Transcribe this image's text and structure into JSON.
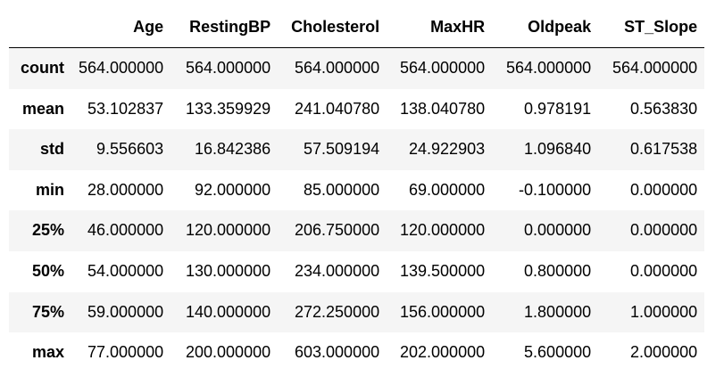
{
  "table": {
    "index_header": "",
    "columns": [
      "Age",
      "RestingBP",
      "Cholesterol",
      "MaxHR",
      "Oldpeak",
      "ST_Slope"
    ],
    "rows": [
      {
        "label": "count",
        "values": [
          "564.000000",
          "564.000000",
          "564.000000",
          "564.000000",
          "564.000000",
          "564.000000"
        ]
      },
      {
        "label": "mean",
        "values": [
          "53.102837",
          "133.359929",
          "241.040780",
          "138.040780",
          "0.978191",
          "0.563830"
        ]
      },
      {
        "label": "std",
        "values": [
          "9.556603",
          "16.842386",
          "57.509194",
          "24.922903",
          "1.096840",
          "0.617538"
        ]
      },
      {
        "label": "min",
        "values": [
          "28.000000",
          "92.000000",
          "85.000000",
          "69.000000",
          "-0.100000",
          "0.000000"
        ]
      },
      {
        "label": "25%",
        "values": [
          "46.000000",
          "120.000000",
          "206.750000",
          "120.000000",
          "0.000000",
          "0.000000"
        ]
      },
      {
        "label": "50%",
        "values": [
          "54.000000",
          "130.000000",
          "234.000000",
          "139.500000",
          "0.800000",
          "0.000000"
        ]
      },
      {
        "label": "75%",
        "values": [
          "59.000000",
          "140.000000",
          "272.250000",
          "156.000000",
          "1.800000",
          "1.000000"
        ]
      },
      {
        "label": "max",
        "values": [
          "77.000000",
          "200.000000",
          "603.000000",
          "202.000000",
          "5.600000",
          "2.000000"
        ]
      }
    ]
  },
  "colors": {
    "row_stripe": "#f5f5f5",
    "background": "#ffffff",
    "header_rule": "#000000"
  }
}
